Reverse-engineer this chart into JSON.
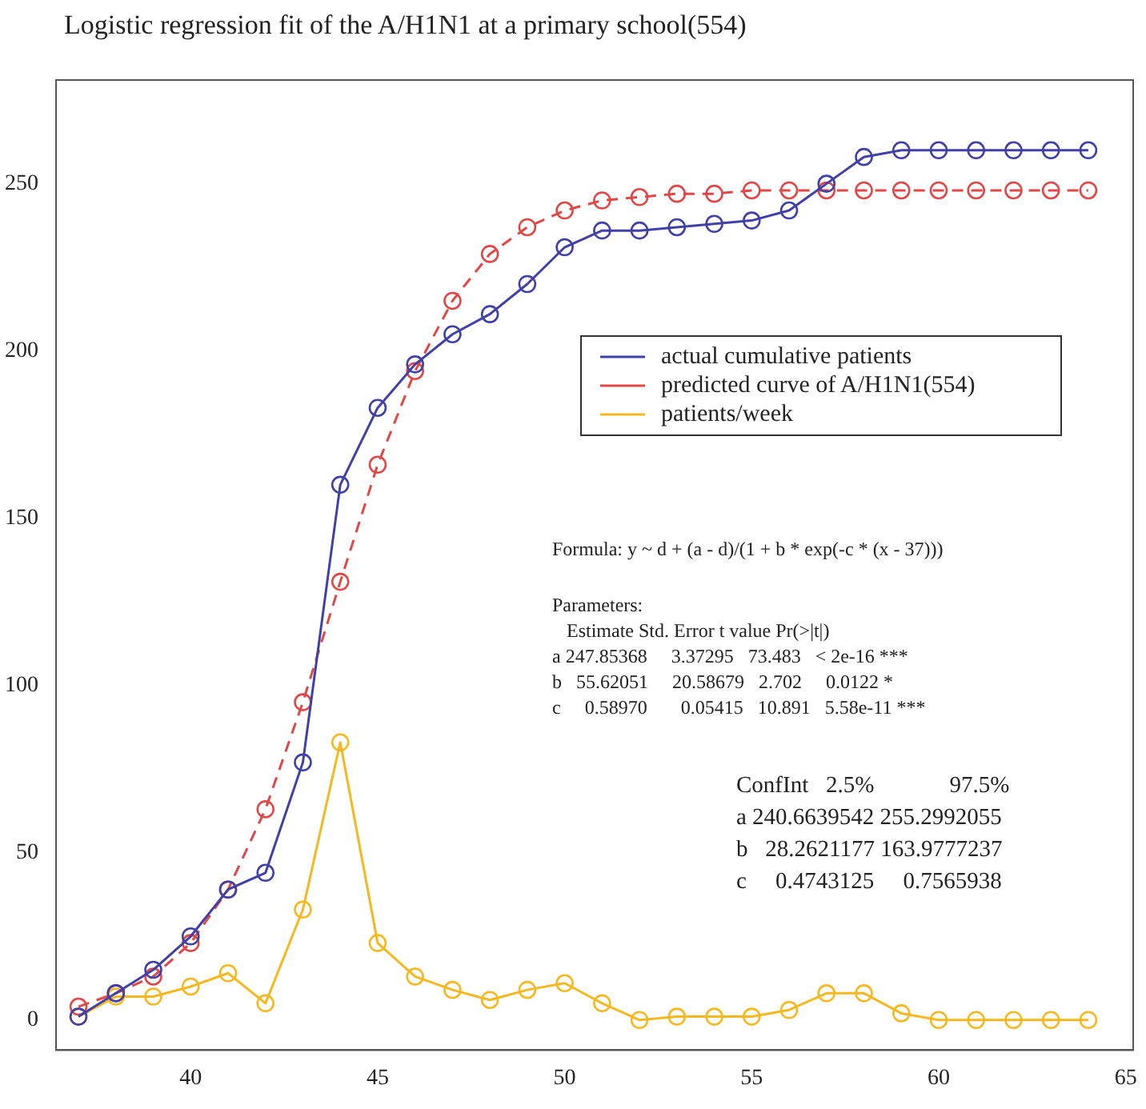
{
  "chart_data": {
    "type": "line",
    "title": "Logistic regression fit of the A/H1N1 at a primary school(554)",
    "x": [
      37,
      38,
      39,
      40,
      41,
      42,
      43,
      44,
      45,
      46,
      47,
      48,
      49,
      50,
      51,
      52,
      53,
      54,
      55,
      56,
      57,
      58,
      59,
      60,
      61,
      62,
      63,
      64
    ],
    "series": [
      {
        "name": "actual cumulative patients",
        "color": "#4040a8",
        "line_style": "solid",
        "values": [
          1,
          8,
          15,
          25,
          39,
          44,
          77,
          160,
          183,
          196,
          205,
          211,
          220,
          231,
          236,
          236,
          237,
          238,
          239,
          242,
          250,
          258,
          260,
          260,
          260,
          260,
          260,
          260
        ]
      },
      {
        "name": "predicted curve of A/H1N1(554)",
        "color": "#e04848",
        "line_style": "dashed",
        "values": [
          4,
          8,
          13,
          23,
          39,
          63,
          95,
          131,
          166,
          194,
          215,
          229,
          237,
          242,
          245,
          246,
          247,
          247,
          248,
          248,
          248,
          248,
          248,
          248,
          248,
          248,
          248,
          248
        ]
      },
      {
        "name": "patients/week",
        "color": "#f5b820",
        "line_style": "solid",
        "values": [
          1,
          7,
          7,
          10,
          14,
          5,
          33,
          83,
          23,
          13,
          9,
          6,
          9,
          11,
          5,
          0,
          1,
          1,
          1,
          3,
          8,
          8,
          2,
          0,
          0,
          0,
          0,
          0
        ]
      }
    ],
    "marker": "circle",
    "legend": "right",
    "grid": false,
    "xlim": [
      36.4,
      65.2
    ],
    "xticks": [
      40,
      45,
      50,
      55,
      60,
      65
    ],
    "ylim": [
      -9,
      281
    ],
    "yticks": [
      0,
      50,
      100,
      150,
      200,
      250
    ],
    "annotations": [
      "Formula: y ~ d + (a - d)/(1 + b * exp(-c * (x - 37)))",
      "Parameters:",
      "  Estimate Std. Error t value Pr(>|t|)",
      "a 247.85368   3.37295  73.483  < 2e-16 ***",
      "b  55.62051   20.58679  2.702   0.0122 *",
      "c   0.58970    0.05415  10.891  5.58e-11 ***",
      "ConfInt  2.5%       97.5%",
      "a 240.6639542 255.2992055",
      "b  28.2621177 163.9777237",
      "c   0.4743125   0.7565938"
    ]
  }
}
